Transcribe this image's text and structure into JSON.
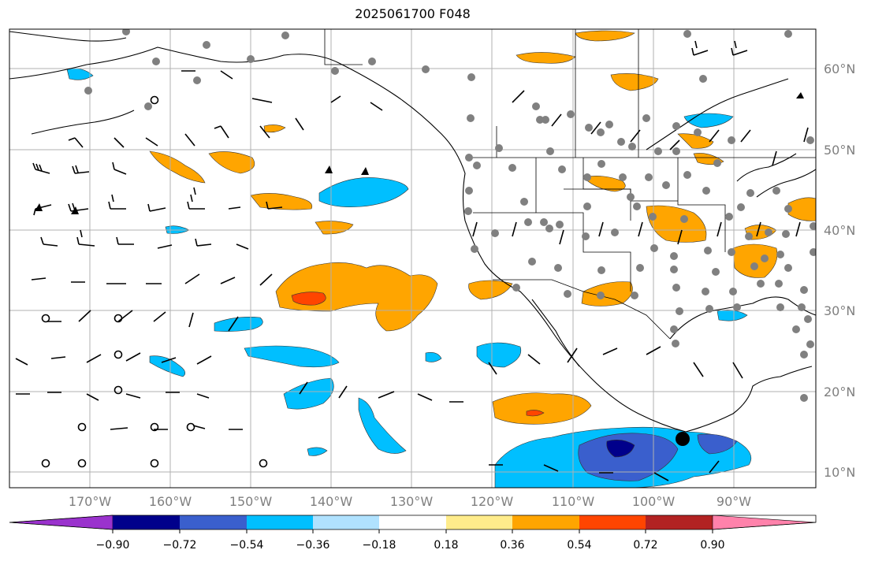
{
  "title": "2025061700 F048",
  "map": {
    "lon_ticks": [
      "170°W",
      "160°W",
      "150°W",
      "140°W",
      "130°W",
      "120°W",
      "110°W",
      "100°W",
      "90°W"
    ],
    "lat_ticks": [
      "60°N",
      "50°N",
      "40°N",
      "30°N",
      "20°N",
      "10°N"
    ],
    "extent": {
      "lon": [
        -180,
        -80
      ],
      "lat": [
        8,
        63
      ]
    },
    "gridlines": true
  },
  "colorbar": {
    "labels": [
      "−0.90",
      "−0.72",
      "−0.54",
      "−0.36",
      "−0.18",
      "0.18",
      "0.36",
      "0.54",
      "0.72",
      "0.90"
    ],
    "colors": [
      "#9a32cd",
      "#00008b",
      "#3a5fcd",
      "#00bfff",
      "#b0e2ff",
      "#ffffff",
      "#ffec8b",
      "#ffa500",
      "#ff4500",
      "#b22222",
      "#ff82ab"
    ],
    "extend": "both"
  },
  "chart_data": {
    "type": "heatmap",
    "title": "2025061700 F048",
    "levels": [
      -0.9,
      -0.72,
      -0.54,
      -0.36,
      -0.18,
      0.18,
      0.36,
      0.54,
      0.72,
      0.9
    ],
    "xlim": [
      -180,
      -80
    ],
    "ylim": [
      8,
      63
    ],
    "grid": true,
    "legend": "bottom colorbar"
  }
}
